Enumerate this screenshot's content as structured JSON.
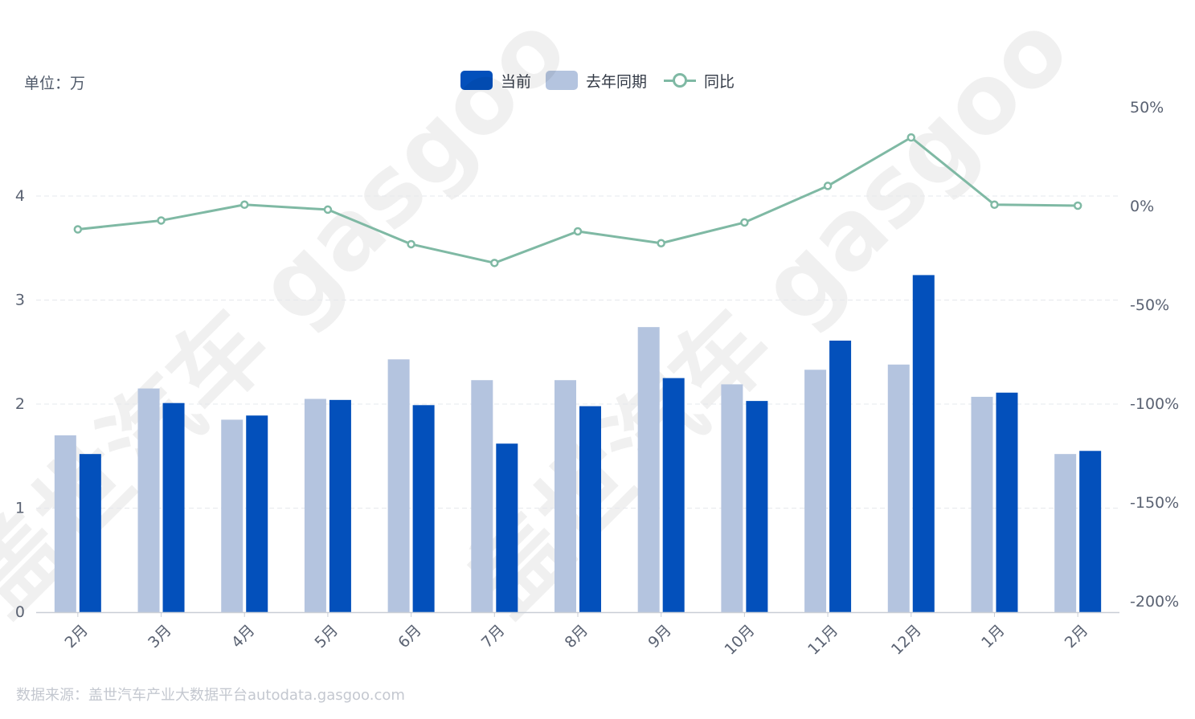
{
  "unit_label": "单位：万",
  "source_text": "数据来源：盖世汽车产业大数据平台autodata.gasgoo.com",
  "watermark": "盖世汽车 gasgoo",
  "legend": {
    "current": "当前",
    "last_year": "去年同期",
    "yoy": "同比"
  },
  "colors": {
    "current": "#0350bb",
    "last_year": "#b4c4df",
    "yoy": "#7fb9a4",
    "grid": "#e6e8ec",
    "axis_text": "#5a6272"
  },
  "chart_data": {
    "type": "bar",
    "categories": [
      "2月",
      "3月",
      "4月",
      "5月",
      "6月",
      "7月",
      "8月",
      "9月",
      "10月",
      "11月",
      "12月",
      "1月",
      "2月"
    ],
    "series": [
      {
        "name": "去年同期",
        "type": "bar",
        "axis": "left",
        "values": [
          1.7,
          2.15,
          1.85,
          2.05,
          2.43,
          2.23,
          2.23,
          2.74,
          2.19,
          2.33,
          2.38,
          2.07,
          1.52
        ]
      },
      {
        "name": "当前",
        "type": "bar",
        "axis": "left",
        "values": [
          1.52,
          2.01,
          1.89,
          2.04,
          1.99,
          1.62,
          1.98,
          2.25,
          2.03,
          2.61,
          3.24,
          2.11,
          1.55
        ]
      },
      {
        "name": "同比",
        "type": "line",
        "axis": "right",
        "values": [
          -12.0,
          -7.5,
          0.5,
          -2.0,
          -19.5,
          -29.0,
          -13.0,
          -19.0,
          -8.5,
          10.0,
          34.5,
          0.5,
          0.0
        ]
      }
    ],
    "left_axis": {
      "min": 0,
      "max": 4,
      "ticks": [
        0,
        1,
        2,
        3,
        4
      ],
      "tick_labels": [
        "0",
        "1",
        "2",
        "3",
        "4"
      ]
    },
    "right_axis": {
      "min": -200,
      "max": 50,
      "ticks": [
        50,
        0,
        -50,
        -100,
        -150,
        -200
      ],
      "tick_labels": [
        "50%",
        "0%",
        "-50%",
        "-100%",
        "-150%",
        "-200%"
      ]
    },
    "grid": true,
    "legend_position": "top-center"
  }
}
